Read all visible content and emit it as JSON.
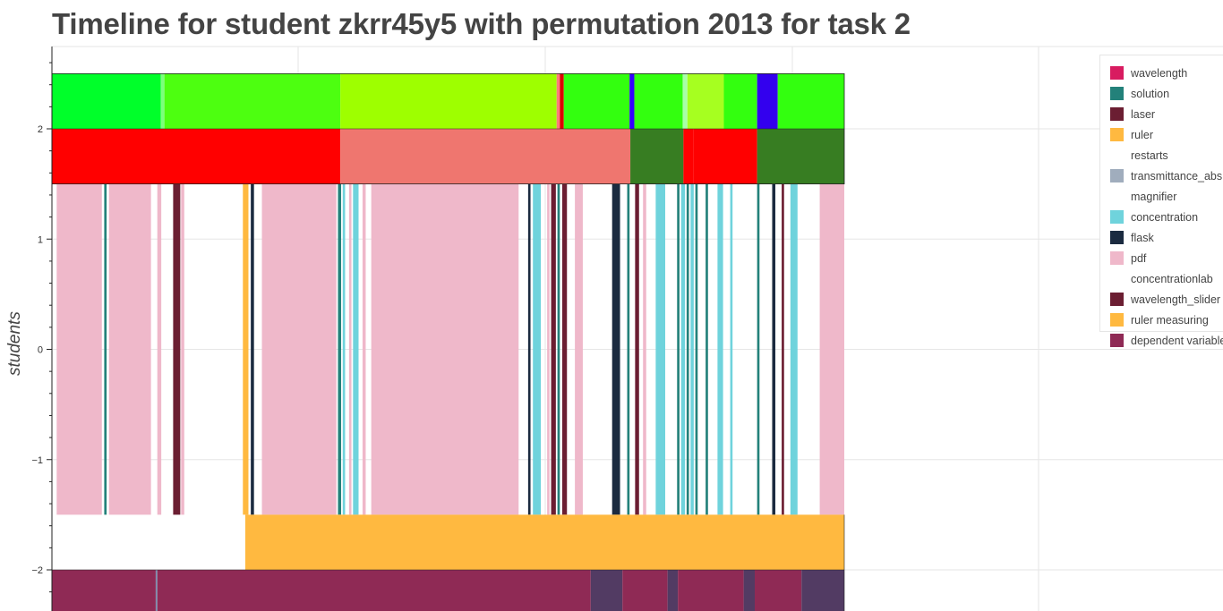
{
  "chart_data": {
    "type": "timeline",
    "title": "Timeline for student zkrr45y5 with permutation 2013 for task 2",
    "ylabel": "students",
    "ylim": [
      -2.45,
      2.8
    ],
    "yticks": [
      -2,
      -1,
      0,
      1,
      2
    ],
    "ytick_labels": [
      "−2",
      "−1",
      "0",
      "1",
      "2"
    ],
    "grid": true,
    "legend_position": "top-right",
    "legend": [
      {
        "label": "wavelength",
        "color": "#d81b60"
      },
      {
        "label": "solution",
        "color": "#23817a"
      },
      {
        "label": "laser",
        "color": "#6b1e32"
      },
      {
        "label": "ruler",
        "color": "#ffb940"
      },
      {
        "label": "restarts",
        "color": "#ffffff"
      },
      {
        "label": "transmittance_abs",
        "color": "#a0adbd"
      },
      {
        "label": "magnifier",
        "color": "#ffffff"
      },
      {
        "label": "concentration",
        "color": "#6fd3dc"
      },
      {
        "label": "flask",
        "color": "#1b2b40"
      },
      {
        "label": "pdf",
        "color": "#efb8ca"
      },
      {
        "label": "concentrationlab",
        "color": "#ffffff"
      },
      {
        "label": "wavelength_slider",
        "color": "#6b1e32"
      },
      {
        "label": "ruler measuring",
        "color": "#ffb940"
      },
      {
        "label": "dependent variable",
        "color": "#8f2a55"
      }
    ],
    "rows": [
      {
        "y0": 2.0,
        "y1": 2.5,
        "segments": [
          {
            "start": 0,
            "end": 13.75,
            "color": "#00ff2a"
          },
          {
            "start": 13.75,
            "end": 14.2,
            "color": "#7cff7c"
          },
          {
            "start": 14.2,
            "end": 36.4,
            "color": "#4dff10"
          },
          {
            "start": 36.4,
            "end": 63.7,
            "color": "#9eff00"
          },
          {
            "start": 63.7,
            "end": 64.1,
            "color": "#ff7a7a"
          },
          {
            "start": 64.1,
            "end": 64.6,
            "color": "#dd0000"
          },
          {
            "start": 64.6,
            "end": 72.9,
            "color": "#33ff0f"
          },
          {
            "start": 72.9,
            "end": 73.5,
            "color": "#3300ff"
          },
          {
            "start": 73.5,
            "end": 79.6,
            "color": "#33ff0f"
          },
          {
            "start": 79.6,
            "end": 80.2,
            "color": "#a8ffa8"
          },
          {
            "start": 80.2,
            "end": 84.8,
            "color": "#a6ff20"
          },
          {
            "start": 84.8,
            "end": 89.0,
            "color": "#33ff0f"
          },
          {
            "start": 89.0,
            "end": 91.6,
            "color": "#3300ee"
          },
          {
            "start": 91.6,
            "end": 100,
            "color": "#33ff0f"
          }
        ]
      },
      {
        "y0": 1.5,
        "y1": 2.0,
        "segments": [
          {
            "start": 0,
            "end": 36.4,
            "color": "#ff0000"
          },
          {
            "start": 36.4,
            "end": 73.0,
            "color": "#ef766f"
          },
          {
            "start": 73.0,
            "end": 79.7,
            "color": "#377d22"
          },
          {
            "start": 79.7,
            "end": 81.0,
            "color": "#ff0000"
          },
          {
            "start": 81.0,
            "end": 89.0,
            "color": "#ff0000"
          },
          {
            "start": 89.0,
            "end": 100,
            "color": "#377d22"
          }
        ]
      },
      {
        "y0": -1.5,
        "y1": 1.5,
        "segments": [
          {
            "start": 0.6,
            "end": 6.3,
            "color": "#efb8ca"
          },
          {
            "start": 6.6,
            "end": 6.9,
            "color": "#23817a"
          },
          {
            "start": 7.2,
            "end": 12.5,
            "color": "#efb8ca"
          },
          {
            "start": 13.3,
            "end": 13.8,
            "color": "#efb8ca"
          },
          {
            "start": 15.3,
            "end": 16.2,
            "color": "#6b1e32"
          },
          {
            "start": 16.3,
            "end": 16.7,
            "color": "#efb8ca"
          },
          {
            "start": 24.1,
            "end": 24.8,
            "color": "#ffb940"
          },
          {
            "start": 25.1,
            "end": 25.5,
            "color": "#1b2b40"
          },
          {
            "start": 26.5,
            "end": 35.9,
            "color": "#efb8ca"
          },
          {
            "start": 36.1,
            "end": 36.5,
            "color": "#23817a"
          },
          {
            "start": 36.7,
            "end": 37.0,
            "color": "#6fd3dc"
          },
          {
            "start": 37.5,
            "end": 37.8,
            "color": "#efb8ca"
          },
          {
            "start": 38.0,
            "end": 38.7,
            "color": "#6fd3dc"
          },
          {
            "start": 39.2,
            "end": 39.6,
            "color": "#efb8ca"
          },
          {
            "start": 40.3,
            "end": 58.9,
            "color": "#efb8ca"
          },
          {
            "start": 60.1,
            "end": 60.4,
            "color": "#1b2b40"
          },
          {
            "start": 60.7,
            "end": 61.7,
            "color": "#6fd3dc"
          },
          {
            "start": 62.5,
            "end": 62.8,
            "color": "#efb8ca"
          },
          {
            "start": 63.0,
            "end": 63.6,
            "color": "#6b1e32"
          },
          {
            "start": 63.8,
            "end": 64.1,
            "color": "#23817a"
          },
          {
            "start": 64.4,
            "end": 65.0,
            "color": "#6b1e32"
          },
          {
            "start": 66.0,
            "end": 67.0,
            "color": "#efb8ca"
          },
          {
            "start": 70.7,
            "end": 71.7,
            "color": "#1b2b40"
          },
          {
            "start": 72.6,
            "end": 72.9,
            "color": "#23817a"
          },
          {
            "start": 73.6,
            "end": 74.1,
            "color": "#6b1e32"
          },
          {
            "start": 74.6,
            "end": 75.0,
            "color": "#efb8ca"
          },
          {
            "start": 76.2,
            "end": 77.4,
            "color": "#6fd3dc"
          },
          {
            "start": 78.9,
            "end": 79.2,
            "color": "#23817a"
          },
          {
            "start": 79.4,
            "end": 79.9,
            "color": "#6fd3dc"
          },
          {
            "start": 80.1,
            "end": 80.4,
            "color": "#23817a"
          },
          {
            "start": 80.6,
            "end": 81.0,
            "color": "#6fd3dc"
          },
          {
            "start": 81.2,
            "end": 81.5,
            "color": "#23817a"
          },
          {
            "start": 82.5,
            "end": 82.8,
            "color": "#23817a"
          },
          {
            "start": 84.0,
            "end": 84.7,
            "color": "#6fd3dc"
          },
          {
            "start": 85.6,
            "end": 85.9,
            "color": "#6fd3dc"
          },
          {
            "start": 89.0,
            "end": 89.3,
            "color": "#23817a"
          },
          {
            "start": 90.9,
            "end": 91.3,
            "color": "#1b2b40"
          },
          {
            "start": 92.1,
            "end": 92.4,
            "color": "#6b1e32"
          },
          {
            "start": 93.2,
            "end": 94.1,
            "color": "#6fd3dc"
          },
          {
            "start": 96.9,
            "end": 100,
            "color": "#efb8ca"
          }
        ]
      },
      {
        "y0": -2.0,
        "y1": -1.5,
        "segments": [
          {
            "start": 24.4,
            "end": 100,
            "color": "#ffb940"
          }
        ]
      },
      {
        "y0": -2.45,
        "y1": -2.0,
        "segments": [
          {
            "start": 0,
            "end": 13.1,
            "color": "#8f2a55"
          },
          {
            "start": 13.1,
            "end": 13.3,
            "color": "#7c8fb0"
          },
          {
            "start": 13.3,
            "end": 68.0,
            "color": "#8f2a55"
          },
          {
            "start": 68.0,
            "end": 72.0,
            "color": "#523b63"
          },
          {
            "start": 72.0,
            "end": 77.7,
            "color": "#8f2a55"
          },
          {
            "start": 77.7,
            "end": 79.0,
            "color": "#523b63"
          },
          {
            "start": 79.0,
            "end": 87.3,
            "color": "#8f2a55"
          },
          {
            "start": 87.3,
            "end": 88.7,
            "color": "#523b63"
          },
          {
            "start": 88.7,
            "end": 94.6,
            "color": "#8f2a55"
          },
          {
            "start": 94.6,
            "end": 100,
            "color": "#523b63"
          }
        ]
      }
    ]
  }
}
